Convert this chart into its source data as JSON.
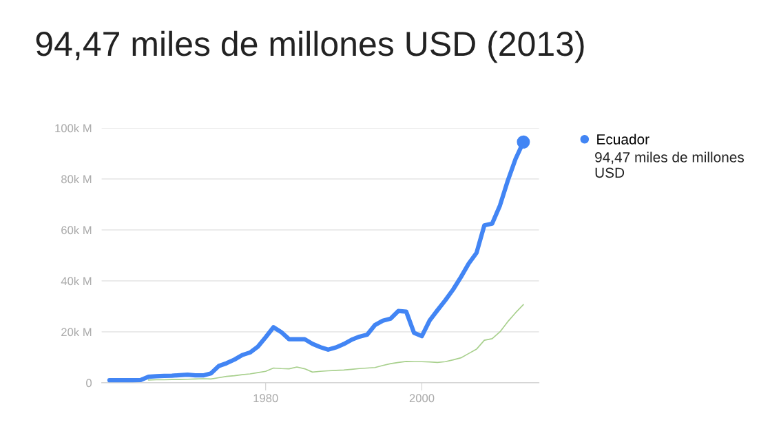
{
  "chart_data": {
    "type": "line",
    "title": "94,47 miles de millones USD (2013)",
    "x": [
      1960,
      1961,
      1962,
      1963,
      1964,
      1965,
      1966,
      1967,
      1968,
      1969,
      1970,
      1971,
      1972,
      1973,
      1974,
      1975,
      1976,
      1977,
      1978,
      1979,
      1980,
      1981,
      1982,
      1983,
      1984,
      1985,
      1986,
      1987,
      1988,
      1989,
      1990,
      1991,
      1992,
      1993,
      1994,
      1995,
      1996,
      1997,
      1998,
      1999,
      2000,
      2001,
      2002,
      2003,
      2004,
      2005,
      2006,
      2007,
      2008,
      2009,
      2010,
      2011,
      2012,
      2013
    ],
    "series": [
      {
        "name": "Ecuador",
        "color": "#4285f4",
        "values": [
          1000,
          1000,
          1000,
          1000,
          1100,
          2400,
          2600,
          2700,
          2800,
          3000,
          3200,
          2900,
          2900,
          3700,
          6600,
          7700,
          9100,
          10900,
          11900,
          14200,
          17900,
          21800,
          19900,
          17100,
          17100,
          17100,
          15300,
          14000,
          13000,
          13900,
          15200,
          16900,
          18100,
          18900,
          22700,
          24400,
          25200,
          28200,
          27900,
          19600,
          18300,
          24500,
          28500,
          32400,
          36600,
          41500,
          46800,
          51000,
          61800,
          62500,
          69600,
          79300,
          87900,
          94500
        ]
      },
      {
        "color": "#a8d08d",
        "values": [
          null,
          null,
          null,
          null,
          null,
          1100,
          1200,
          1200,
          1300,
          1300,
          1400,
          1500,
          1600,
          1500,
          2000,
          2500,
          2800,
          3200,
          3500,
          4000,
          4500,
          5800,
          5600,
          5500,
          6200,
          5500,
          4200,
          4500,
          4700,
          4900,
          5000,
          5300,
          5600,
          5800,
          6000,
          6800,
          7500,
          8000,
          8400,
          8300,
          8300,
          8200,
          8000,
          8300,
          9000,
          9800,
          11500,
          13200,
          16700,
          17300,
          20000,
          24000,
          27500,
          30700
        ]
      },
      {
        "type": "scatter",
        "marker": "circle",
        "color": "#4285f4",
        "x": [
          2013
        ],
        "values": [
          94500
        ]
      }
    ],
    "annotations": [
      "94,47 miles de millones USD"
    ],
    "xlim": [
      1959,
      2015
    ],
    "xticks": [
      1980,
      2000
    ],
    "ylim": [
      0,
      100000
    ],
    "yticks": [
      {
        "value": 0,
        "label": "0"
      },
      {
        "value": 20000,
        "label": "20k M"
      },
      {
        "value": 40000,
        "label": "40k M"
      },
      {
        "value": 60000,
        "label": "60k M"
      },
      {
        "value": 80000,
        "label": "80k M"
      },
      {
        "value": 100000,
        "label": "100k M"
      }
    ],
    "grid": "y",
    "legend": "top right",
    "marker": "none"
  }
}
